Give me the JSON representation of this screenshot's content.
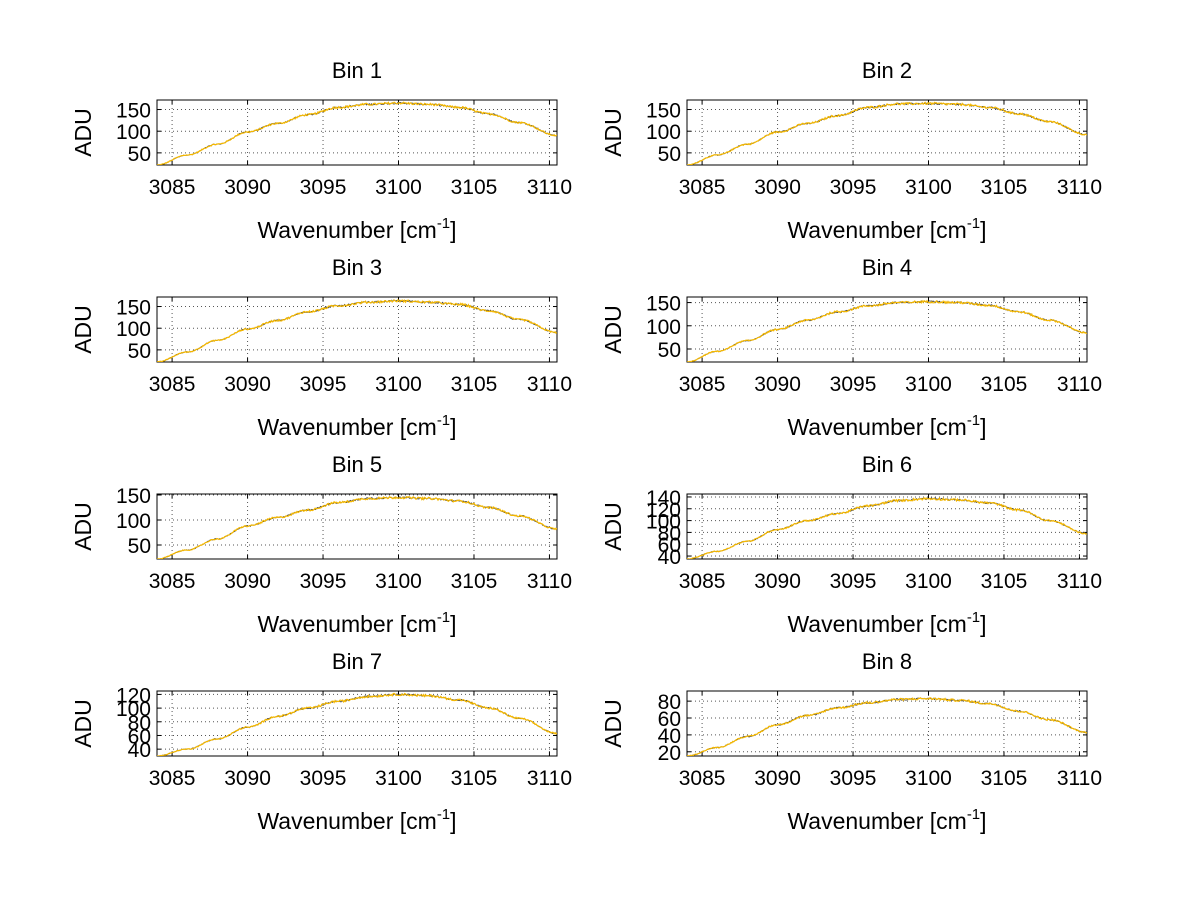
{
  "figure": {
    "background": "#ffffff",
    "line_color": "#f5b800",
    "noise_color": "#3a3a3a",
    "grid_color": "#555555"
  },
  "chart_data": [
    {
      "type": "line",
      "title": "Bin 1",
      "xlabel": {
        "main": "Wavenumber [cm",
        "sup": "-1",
        "close": "]"
      },
      "ylabel": "ADU",
      "xlim": [
        3084,
        3110.5
      ],
      "ylim": [
        22,
        172
      ],
      "xticks": [
        "3085",
        "3090",
        "3095",
        "3100",
        "3105",
        "3110"
      ],
      "yticks": [
        "50",
        "100",
        "150"
      ],
      "grid": true,
      "series": [
        {
          "x": [
            3084,
            3086,
            3088,
            3090,
            3092,
            3094,
            3096,
            3098,
            3100,
            3102,
            3104,
            3106,
            3108,
            3110.5
          ],
          "values": [
            22,
            45,
            70,
            98,
            118,
            138,
            155,
            162,
            165,
            162,
            155,
            140,
            120,
            90
          ]
        }
      ]
    },
    {
      "type": "line",
      "title": "Bin 2",
      "xlabel": {
        "main": "Wavenumber [cm",
        "sup": "-1",
        "close": "]"
      },
      "ylabel": "ADU",
      "xlim": [
        3084,
        3110.5
      ],
      "ylim": [
        22,
        172
      ],
      "xticks": [
        "3085",
        "3090",
        "3095",
        "3100",
        "3105",
        "3110"
      ],
      "yticks": [
        "50",
        "100",
        "150"
      ],
      "grid": true,
      "series": [
        {
          "x": [
            3084,
            3086,
            3088,
            3090,
            3092,
            3094,
            3096,
            3098,
            3100,
            3102,
            3104,
            3106,
            3108,
            3110.5
          ],
          "values": [
            22,
            45,
            70,
            98,
            118,
            136,
            155,
            163,
            164,
            162,
            155,
            140,
            122,
            92
          ]
        }
      ]
    },
    {
      "type": "line",
      "title": "Bin 3",
      "xlabel": {
        "main": "Wavenumber [cm",
        "sup": "-1",
        "close": "]"
      },
      "ylabel": "ADU",
      "xlim": [
        3084,
        3110.5
      ],
      "ylim": [
        22,
        172
      ],
      "xticks": [
        "3085",
        "3090",
        "3095",
        "3100",
        "3105",
        "3110"
      ],
      "yticks": [
        "50",
        "100",
        "150"
      ],
      "grid": true,
      "series": [
        {
          "x": [
            3084,
            3086,
            3088,
            3090,
            3092,
            3094,
            3096,
            3098,
            3100,
            3102,
            3104,
            3106,
            3108,
            3110.5
          ],
          "values": [
            22,
            45,
            72,
            98,
            118,
            138,
            152,
            160,
            163,
            160,
            155,
            140,
            120,
            90
          ]
        }
      ]
    },
    {
      "type": "line",
      "title": "Bin 4",
      "xlabel": {
        "main": "Wavenumber [cm",
        "sup": "-1",
        "close": "]"
      },
      "ylabel": "ADU",
      "xlim": [
        3084,
        3110.5
      ],
      "ylim": [
        22,
        162
      ],
      "xticks": [
        "3085",
        "3090",
        "3095",
        "3100",
        "3105",
        "3110"
      ],
      "yticks": [
        "50",
        "100",
        "150"
      ],
      "grid": true,
      "series": [
        {
          "x": [
            3084,
            3086,
            3088,
            3090,
            3092,
            3094,
            3096,
            3098,
            3100,
            3102,
            3104,
            3106,
            3108,
            3110.5
          ],
          "values": [
            22,
            45,
            68,
            92,
            112,
            130,
            143,
            150,
            152,
            150,
            144,
            130,
            112,
            85
          ]
        }
      ]
    },
    {
      "type": "line",
      "title": "Bin 5",
      "xlabel": {
        "main": "Wavenumber [cm",
        "sup": "-1",
        "close": "]"
      },
      "ylabel": "ADU",
      "xlim": [
        3084,
        3110.5
      ],
      "ylim": [
        22,
        152
      ],
      "xticks": [
        "3085",
        "3090",
        "3095",
        "3100",
        "3105",
        "3110"
      ],
      "yticks": [
        "50",
        "100",
        "150"
      ],
      "grid": true,
      "series": [
        {
          "x": [
            3084,
            3086,
            3088,
            3090,
            3092,
            3094,
            3096,
            3098,
            3100,
            3102,
            3104,
            3106,
            3108,
            3110.5
          ],
          "values": [
            22,
            40,
            62,
            88,
            105,
            120,
            135,
            143,
            145,
            143,
            138,
            125,
            108,
            82
          ]
        }
      ]
    },
    {
      "type": "line",
      "title": "Bin 6",
      "xlabel": {
        "main": "Wavenumber [cm",
        "sup": "-1",
        "close": "]"
      },
      "ylabel": "ADU",
      "xlim": [
        3084,
        3110.5
      ],
      "ylim": [
        35,
        145
      ],
      "xticks": [
        "3085",
        "3090",
        "3095",
        "3100",
        "3105",
        "3110"
      ],
      "yticks": [
        "40",
        "60",
        "80",
        "100",
        "120",
        "140"
      ],
      "grid": true,
      "series": [
        {
          "x": [
            3084,
            3086,
            3088,
            3090,
            3092,
            3094,
            3096,
            3098,
            3100,
            3102,
            3104,
            3106,
            3108,
            3110.5
          ],
          "values": [
            35,
            48,
            65,
            85,
            100,
            112,
            125,
            134,
            137,
            135,
            130,
            118,
            100,
            78
          ]
        }
      ]
    },
    {
      "type": "line",
      "title": "Bin 7",
      "xlabel": {
        "main": "Wavenumber [cm",
        "sup": "-1",
        "close": "]"
      },
      "ylabel": "ADU",
      "xlim": [
        3084,
        3110.5
      ],
      "ylim": [
        30,
        125
      ],
      "xticks": [
        "3085",
        "3090",
        "3095",
        "3100",
        "3105",
        "3110"
      ],
      "yticks": [
        "40",
        "60",
        "80",
        "100",
        "120"
      ],
      "grid": true,
      "series": [
        {
          "x": [
            3084,
            3086,
            3088,
            3090,
            3092,
            3094,
            3096,
            3098,
            3100,
            3102,
            3104,
            3106,
            3108,
            3110.5
          ],
          "values": [
            30,
            40,
            55,
            72,
            88,
            100,
            110,
            117,
            120,
            118,
            112,
            100,
            85,
            63
          ]
        }
      ]
    },
    {
      "type": "line",
      "title": "Bin 8",
      "xlabel": {
        "main": "Wavenumber [cm",
        "sup": "-1",
        "close": "]"
      },
      "ylabel": "ADU",
      "xlim": [
        3084,
        3110.5
      ],
      "ylim": [
        15,
        92
      ],
      "xticks": [
        "3085",
        "3090",
        "3095",
        "3100",
        "3105",
        "3110"
      ],
      "yticks": [
        "20",
        "40",
        "60",
        "80"
      ],
      "grid": true,
      "series": [
        {
          "x": [
            3084,
            3086,
            3088,
            3090,
            3092,
            3094,
            3096,
            3098,
            3100,
            3102,
            3104,
            3106,
            3108,
            3110.5
          ],
          "values": [
            15,
            25,
            38,
            52,
            63,
            72,
            78,
            82,
            83,
            81,
            77,
            68,
            58,
            43
          ]
        }
      ]
    }
  ]
}
